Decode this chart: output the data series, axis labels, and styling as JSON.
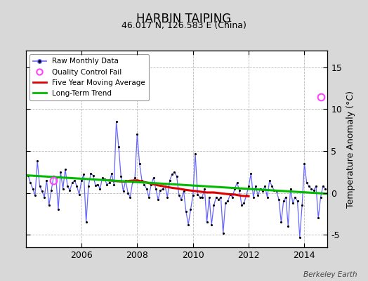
{
  "title": "HARBIN TAIPING",
  "subtitle": "46.017 N, 126.583 E (China)",
  "ylabel": "Temperature Anomaly (°C)",
  "credit": "Berkeley Earth",
  "ylim": [
    -6.5,
    17.0
  ],
  "yticks": [
    -5,
    0,
    5,
    10,
    15
  ],
  "xlim": [
    2004.0,
    2014.83
  ],
  "xticks": [
    2006,
    2008,
    2010,
    2012,
    2014
  ],
  "bg_color": "#d8d8d8",
  "plot_bg_color": "#ffffff",
  "grid_color": "#bbbbbb",
  "raw_color": "#6666ff",
  "raw_dot_color": "#000000",
  "moving_avg_color": "#dd0000",
  "trend_color": "#00bb00",
  "qc_fail_color": "#ff44ff",
  "raw_monthly": [
    [
      2004.083,
      2.1
    ],
    [
      2004.167,
      1.2
    ],
    [
      2004.25,
      0.5
    ],
    [
      2004.333,
      -0.3
    ],
    [
      2004.417,
      3.8
    ],
    [
      2004.5,
      0.8
    ],
    [
      2004.583,
      0.2
    ],
    [
      2004.667,
      -0.5
    ],
    [
      2004.75,
      1.5
    ],
    [
      2004.833,
      -1.5
    ],
    [
      2004.917,
      0.3
    ],
    [
      2005.0,
      2.0
    ],
    [
      2005.083,
      1.8
    ],
    [
      2005.167,
      -2.0
    ],
    [
      2005.25,
      2.5
    ],
    [
      2005.333,
      0.5
    ],
    [
      2005.417,
      2.8
    ],
    [
      2005.5,
      0.8
    ],
    [
      2005.583,
      0.3
    ],
    [
      2005.667,
      1.2
    ],
    [
      2005.75,
      1.5
    ],
    [
      2005.833,
      0.8
    ],
    [
      2005.917,
      -0.2
    ],
    [
      2006.0,
      1.5
    ],
    [
      2006.083,
      2.2
    ],
    [
      2006.167,
      -3.5
    ],
    [
      2006.25,
      0.8
    ],
    [
      2006.333,
      2.3
    ],
    [
      2006.417,
      2.1
    ],
    [
      2006.5,
      0.9
    ],
    [
      2006.583,
      1.0
    ],
    [
      2006.667,
      0.5
    ],
    [
      2006.75,
      1.8
    ],
    [
      2006.833,
      1.6
    ],
    [
      2006.917,
      1.0
    ],
    [
      2007.0,
      1.2
    ],
    [
      2007.083,
      2.3
    ],
    [
      2007.167,
      1.0
    ],
    [
      2007.25,
      8.5
    ],
    [
      2007.333,
      5.5
    ],
    [
      2007.417,
      2.0
    ],
    [
      2007.5,
      0.2
    ],
    [
      2007.583,
      1.5
    ],
    [
      2007.667,
      0.0
    ],
    [
      2007.75,
      -0.5
    ],
    [
      2007.833,
      1.3
    ],
    [
      2007.917,
      1.8
    ],
    [
      2008.0,
      7.0
    ],
    [
      2008.083,
      3.5
    ],
    [
      2008.167,
      1.5
    ],
    [
      2008.25,
      1.0
    ],
    [
      2008.333,
      0.5
    ],
    [
      2008.417,
      -0.5
    ],
    [
      2008.5,
      1.0
    ],
    [
      2008.583,
      1.8
    ],
    [
      2008.667,
      0.5
    ],
    [
      2008.75,
      -0.8
    ],
    [
      2008.833,
      0.3
    ],
    [
      2008.917,
      0.5
    ],
    [
      2009.0,
      0.8
    ],
    [
      2009.083,
      -0.5
    ],
    [
      2009.167,
      1.5
    ],
    [
      2009.25,
      2.2
    ],
    [
      2009.333,
      2.5
    ],
    [
      2009.417,
      2.0
    ],
    [
      2009.5,
      -0.3
    ],
    [
      2009.583,
      -0.8
    ],
    [
      2009.667,
      0.2
    ],
    [
      2009.75,
      -2.2
    ],
    [
      2009.833,
      -3.8
    ],
    [
      2009.917,
      -2.0
    ],
    [
      2010.0,
      -0.3
    ],
    [
      2010.083,
      4.7
    ],
    [
      2010.167,
      -0.2
    ],
    [
      2010.25,
      -0.5
    ],
    [
      2010.333,
      -0.5
    ],
    [
      2010.417,
      0.5
    ],
    [
      2010.5,
      -3.5
    ],
    [
      2010.583,
      -0.5
    ],
    [
      2010.667,
      -3.8
    ],
    [
      2010.75,
      -1.5
    ],
    [
      2010.833,
      -0.5
    ],
    [
      2010.917,
      -0.8
    ],
    [
      2011.0,
      -0.5
    ],
    [
      2011.083,
      -4.8
    ],
    [
      2011.167,
      -1.2
    ],
    [
      2011.25,
      -1.0
    ],
    [
      2011.333,
      -0.2
    ],
    [
      2011.417,
      -0.5
    ],
    [
      2011.5,
      0.5
    ],
    [
      2011.583,
      1.2
    ],
    [
      2011.667,
      0.3
    ],
    [
      2011.75,
      -1.5
    ],
    [
      2011.833,
      -1.2
    ],
    [
      2011.917,
      -0.3
    ],
    [
      2012.0,
      0.8
    ],
    [
      2012.083,
      2.3
    ],
    [
      2012.167,
      -0.5
    ],
    [
      2012.25,
      0.8
    ],
    [
      2012.333,
      -0.3
    ],
    [
      2012.417,
      0.5
    ],
    [
      2012.5,
      0.2
    ],
    [
      2012.583,
      0.8
    ],
    [
      2012.667,
      -0.5
    ],
    [
      2012.75,
      1.5
    ],
    [
      2012.833,
      0.8
    ],
    [
      2012.917,
      0.3
    ],
    [
      2013.0,
      0.2
    ],
    [
      2013.083,
      -0.8
    ],
    [
      2013.167,
      -3.5
    ],
    [
      2013.25,
      -1.0
    ],
    [
      2013.333,
      -0.5
    ],
    [
      2013.417,
      -4.0
    ],
    [
      2013.5,
      0.5
    ],
    [
      2013.583,
      -1.2
    ],
    [
      2013.667,
      -0.5
    ],
    [
      2013.75,
      -1.0
    ],
    [
      2013.833,
      -5.3
    ],
    [
      2013.917,
      -1.5
    ],
    [
      2014.0,
      3.5
    ],
    [
      2014.083,
      1.2
    ],
    [
      2014.167,
      0.8
    ],
    [
      2014.25,
      0.5
    ],
    [
      2014.333,
      0.3
    ],
    [
      2014.417,
      0.8
    ],
    [
      2014.5,
      -3.0
    ],
    [
      2014.583,
      -0.5
    ],
    [
      2014.667,
      0.8
    ],
    [
      2014.75,
      0.5
    ]
  ],
  "qc_fail_points": [
    [
      2005.0,
      1.5
    ],
    [
      2014.583,
      11.5
    ]
  ],
  "moving_avg": [
    [
      2007.0,
      1.5
    ],
    [
      2007.25,
      1.4
    ],
    [
      2007.5,
      1.35
    ],
    [
      2007.75,
      1.45
    ],
    [
      2008.0,
      1.5
    ],
    [
      2008.25,
      1.3
    ],
    [
      2008.5,
      1.1
    ],
    [
      2008.75,
      0.9
    ],
    [
      2009.0,
      0.75
    ],
    [
      2009.25,
      0.6
    ],
    [
      2009.5,
      0.5
    ],
    [
      2009.75,
      0.35
    ],
    [
      2010.0,
      0.25
    ],
    [
      2010.25,
      0.15
    ],
    [
      2010.5,
      0.05
    ],
    [
      2010.75,
      0.05
    ],
    [
      2011.0,
      -0.05
    ],
    [
      2011.25,
      -0.15
    ],
    [
      2011.5,
      -0.2
    ],
    [
      2011.75,
      -0.35
    ],
    [
      2012.0,
      -0.4
    ]
  ],
  "trend_x": [
    2004.0,
    2014.83
  ],
  "trend_y": [
    2.1,
    -0.1
  ]
}
